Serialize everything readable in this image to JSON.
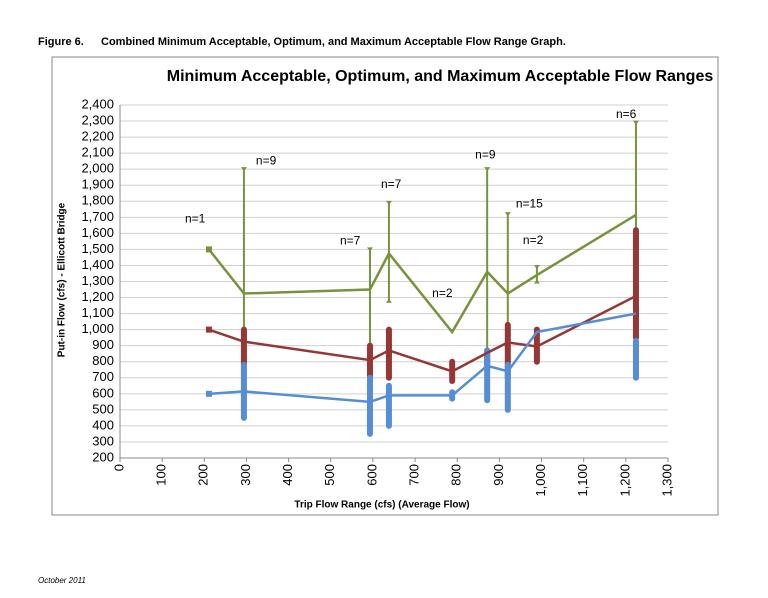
{
  "header": {
    "figure": "Figure 6.",
    "caption": "Combined Minimum Acceptable, Optimum, and Maximum Acceptable Flow Range Graph."
  },
  "footer": "October 2011",
  "chart_data": {
    "type": "line",
    "title": "Minimum Acceptable, Optimum, and Maximum Acceptable Flow Ranges",
    "x_label": "Trip Flow Range (cfs) (Average Flow)",
    "y_label": "Put-in Flow (cfs) - Ellicott Bridge",
    "x": [
      211,
      294,
      593,
      638,
      788,
      871,
      920,
      989,
      1224
    ],
    "series": [
      {
        "color": "#77933c",
        "values": [
          1500,
          1225,
          1250,
          1475,
          985,
          1360,
          1225,
          1340,
          1715
        ],
        "range_low": [
          null,
          1000,
          900,
          1180,
          null,
          850,
          800,
          1300,
          1600
        ],
        "range_high": [
          null,
          2000,
          1500,
          1790,
          null,
          2000,
          1720,
          1390,
          2290
        ]
      },
      {
        "color": "#953735",
        "values": [
          1000,
          925,
          810,
          870,
          740,
          855,
          920,
          895,
          1210
        ],
        "range_low": [
          null,
          780,
          700,
          700,
          680,
          750,
          700,
          800,
          950
        ],
        "range_high": [
          null,
          1000,
          900,
          1000,
          800,
          870,
          1030,
          1000,
          1620
        ]
      },
      {
        "color": "#558ed5",
        "values": [
          600,
          615,
          550,
          590,
          590,
          775,
          740,
          985,
          1100
        ],
        "range_low": [
          null,
          450,
          350,
          400,
          570,
          560,
          500,
          null,
          700
        ],
        "range_high": [
          null,
          780,
          700,
          650,
          610,
          870,
          780,
          null,
          930
        ]
      }
    ],
    "point_labels": [
      "n=1",
      "n=9",
      "n=7",
      "n=7",
      "n=2",
      "n=9",
      "n=15",
      "n=2",
      "n=6"
    ],
    "xlim": [
      0,
      1300
    ],
    "xticks": [
      0,
      100,
      200,
      300,
      400,
      500,
      600,
      700,
      800,
      900,
      {
        "value": 1000,
        "label": "1,000"
      },
      {
        "value": 1100,
        "label": "1,100"
      },
      {
        "value": 1200,
        "label": "1,200"
      },
      {
        "value": 1300,
        "label": "1,300"
      }
    ],
    "ylim": [
      200,
      2400
    ],
    "yticks": [
      200,
      300,
      400,
      500,
      600,
      700,
      800,
      900,
      {
        "value": 1000,
        "label": "1,000"
      },
      {
        "value": 1100,
        "label": "1,100"
      },
      {
        "value": 1200,
        "label": "1,200"
      },
      {
        "value": 1300,
        "label": "1,300"
      },
      {
        "value": 1400,
        "label": "1,400"
      },
      {
        "value": 1500,
        "label": "1,500"
      },
      {
        "value": 1600,
        "label": "1,600"
      },
      {
        "value": 1700,
        "label": "1,700"
      },
      {
        "value": 1800,
        "label": "1,800"
      },
      {
        "value": 1900,
        "label": "1,900"
      },
      {
        "value": 2000,
        "label": "2,000"
      },
      {
        "value": 2100,
        "label": "2,100"
      },
      {
        "value": 2200,
        "label": "2,200"
      },
      {
        "value": 2300,
        "label": "2,300"
      },
      {
        "value": 2400,
        "label": "2,400"
      }
    ],
    "grid": true
  }
}
